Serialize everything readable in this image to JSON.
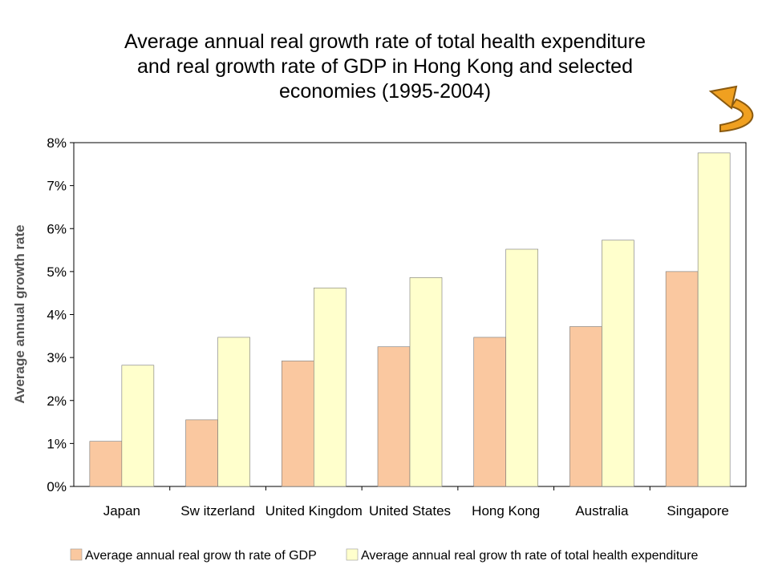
{
  "title_lines": [
    "Average annual real growth rate of total health expenditure",
    "and real growth rate of GDP in Hong Kong and selected",
    "economies (1995-2004)"
  ],
  "decor": {
    "arrow_icon": "curved-return-arrow-icon",
    "arrow_color": "#f0a020"
  },
  "chart_data": {
    "type": "bar",
    "title": "Average annual real growth rate of total health expenditure and real growth rate of GDP in Hong Kong and selected economies (1995-2004)",
    "xlabel": "",
    "ylabel": "Average annual growth rate",
    "ylim": [
      0,
      8
    ],
    "yticks": [
      0,
      1,
      2,
      3,
      4,
      5,
      6,
      7,
      8
    ],
    "ytick_suffix": "%",
    "grid": false,
    "legend_position": "bottom",
    "categories": [
      "Japan",
      "Sw itzerland",
      "United Kingdom",
      "United States",
      "Hong Kong",
      "Australia",
      "Singapore"
    ],
    "series": [
      {
        "name": "Average annual real grow th rate of GDP",
        "color": "#fac8a0",
        "values": [
          1.05,
          1.55,
          2.92,
          3.25,
          3.47,
          3.72,
          5.0
        ]
      },
      {
        "name": "Average annual real grow th rate of total health expenditure",
        "color": "#ffffcc",
        "values": [
          2.82,
          3.47,
          4.62,
          4.86,
          5.52,
          5.73,
          7.76
        ]
      }
    ]
  }
}
